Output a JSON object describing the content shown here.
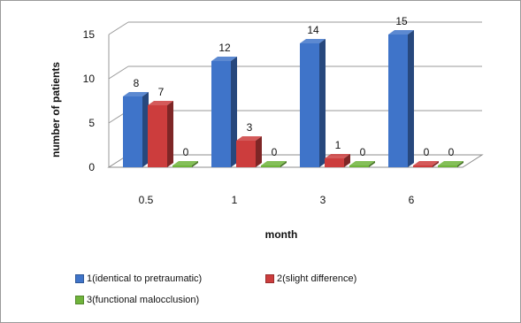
{
  "chart_data": {
    "type": "bar",
    "xlabel": "month",
    "ylabel": "number of patients",
    "categories": [
      "0.5",
      "1",
      "3",
      "6"
    ],
    "series": [
      {
        "name": "1(identical to pretraumatic)",
        "values": [
          8,
          12,
          14,
          15
        ],
        "color": "#3f74c9"
      },
      {
        "name": "2(slight difference)",
        "values": [
          7,
          3,
          1,
          0
        ],
        "color": "#cc3d3d"
      },
      {
        "name": "3(functional malocclusion)",
        "values": [
          0,
          0,
          0,
          0
        ],
        "color": "#6fb43b"
      }
    ],
    "yticks": [
      0,
      5,
      10,
      15
    ],
    "ylim": [
      0,
      15
    ],
    "grid": true,
    "legend_position": "bottom",
    "three_d": true
  }
}
